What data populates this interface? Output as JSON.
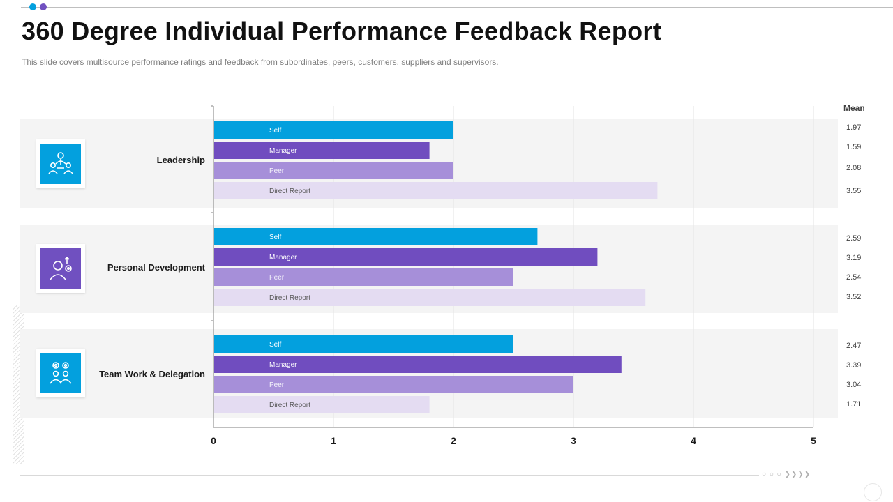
{
  "header": {
    "title": "360 Degree Individual Performance Feedback Report",
    "subtitle": "This slide covers multisource performance ratings and feedback from subordinates, peers, customers, suppliers and supervisors."
  },
  "decor": {
    "dot_colors": [
      "#03a0de",
      "#7050c0"
    ],
    "footer_dots": "○ ○ ○ ❯❯❯❯"
  },
  "chart_data": {
    "type": "bar",
    "orientation": "horizontal",
    "title": "360 Degree Individual Performance Feedback Report",
    "xlim": [
      0,
      5
    ],
    "xticks": [
      0,
      1,
      2,
      3,
      4,
      5
    ],
    "xtick_labels": [
      "0",
      "1",
      "2",
      "3",
      "4",
      "5"
    ],
    "grid": true,
    "mean_header": "Mean",
    "legend_position": "none (labels inside bars)",
    "categories": [
      {
        "name": "Leadership",
        "icon": "leadership-team-icon",
        "icon_color": "#03a0de",
        "bars": [
          {
            "series": "Self",
            "value": 2.0,
            "mean": "1.97"
          },
          {
            "series": "Manager",
            "value": 1.8,
            "mean": "1.59"
          },
          {
            "series": "Peer",
            "value": 2.0,
            "mean": "2.08"
          },
          {
            "series": "Direct Report",
            "value": 3.7,
            "mean": "3.55"
          }
        ]
      },
      {
        "name": "Personal Development",
        "icon": "personal-growth-icon",
        "icon_color": "#7050c0",
        "bars": [
          {
            "series": "Self",
            "value": 2.7,
            "mean": "2.59"
          },
          {
            "series": "Manager",
            "value": 3.2,
            "mean": "3.19"
          },
          {
            "series": "Peer",
            "value": 2.5,
            "mean": "2.54"
          },
          {
            "series": "Direct Report",
            "value": 3.6,
            "mean": "3.52"
          }
        ]
      },
      {
        "name": "Team Work & Delegation",
        "icon": "teamwork-gears-icon",
        "icon_color": "#03a0de",
        "bars": [
          {
            "series": "Self",
            "value": 2.5,
            "mean": "2.47"
          },
          {
            "series": "Manager",
            "value": 3.4,
            "mean": "3.39"
          },
          {
            "series": "Peer",
            "value": 3.0,
            "mean": "3.04"
          },
          {
            "series": "Direct Report",
            "value": 1.8,
            "mean": "1.71"
          }
        ]
      }
    ],
    "series_styles": {
      "Self": {
        "color": "#03a0de",
        "label_color": "#ffffff"
      },
      "Manager": {
        "color": "#704dbf",
        "label_color": "#ffffff"
      },
      "Peer": {
        "color": "#a68fd9",
        "label_color": "#f2f0fa"
      },
      "Direct Report": {
        "color": "#e4dcf2",
        "label_color": "#595959"
      }
    }
  }
}
